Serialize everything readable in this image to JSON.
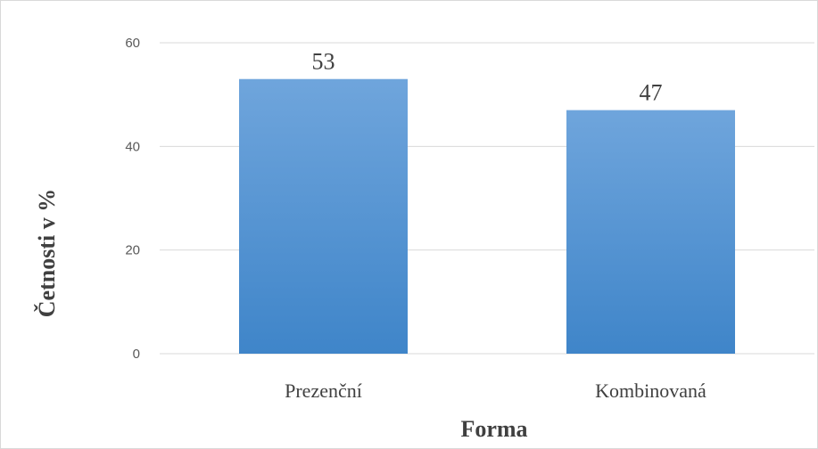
{
  "chart_data": {
    "type": "bar",
    "categories": [
      "Prezenční",
      "Kombinovaná"
    ],
    "values": [
      53,
      47
    ],
    "data_labels": [
      "53",
      "47"
    ],
    "xlabel": "Forma",
    "ylabel": "Četnosti v %",
    "ylim": [
      0,
      60
    ],
    "yticks": [
      0,
      20,
      40,
      60
    ],
    "grid": true,
    "legend": "none",
    "colors": {
      "bar_top": "#6fa5dc",
      "bar_bottom": "#3f85c9",
      "grid": "#d9d9d9"
    }
  }
}
